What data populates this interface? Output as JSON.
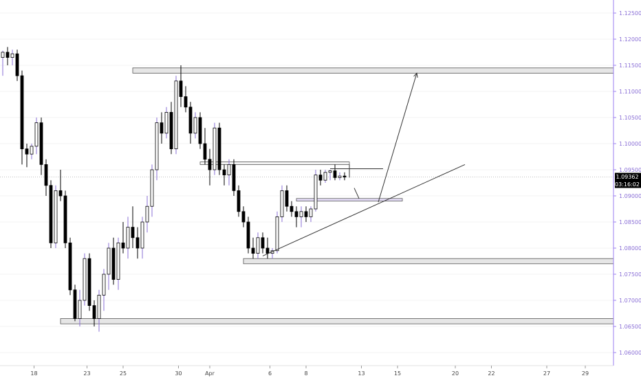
{
  "chart_data": {
    "type": "candlestick",
    "y_axis": {
      "range": [
        1.0575,
        1.1275
      ],
      "ticks": [
        "1.12500",
        "1.12000",
        "1.11500",
        "1.11000",
        "1.10500",
        "1.10000",
        "1.09500",
        "1.09000",
        "1.08500",
        "1.08000",
        "1.07500",
        "1.07000",
        "1.06500",
        "1.06000"
      ]
    },
    "x_axis": {
      "ticks": [
        {
          "label": "18",
          "bar": 6.5
        },
        {
          "label": "23",
          "bar": 17.5
        },
        {
          "label": "25",
          "bar": 25
        },
        {
          "label": "30",
          "bar": 36.5
        },
        {
          "label": "Apr",
          "bar": 43
        },
        {
          "label": "6",
          "bar": 55.5
        },
        {
          "label": "8",
          "bar": 63
        },
        {
          "label": "13",
          "bar": 74.5
        },
        {
          "label": "15",
          "bar": 82
        },
        {
          "label": "20",
          "bar": 94
        },
        {
          "label": "22",
          "bar": 101.5
        },
        {
          "label": "27",
          "bar": 113
        },
        {
          "label": "29",
          "bar": 121
        }
      ]
    },
    "current_price": "1.09362",
    "countdown": "03:16:02",
    "bullish_color": "#ffffff",
    "bearish_color": "#000000",
    "ohlc": [
      [
        1.1165,
        1.1178,
        1.113,
        1.1175
      ],
      [
        1.1175,
        1.1185,
        1.115,
        1.1165
      ],
      [
        1.1165,
        1.118,
        1.115,
        1.1172
      ],
      [
        1.1172,
        1.118,
        1.112,
        1.113
      ],
      [
        1.113,
        1.114,
        1.096,
        1.099
      ],
      [
        1.099,
        1.1,
        1.0955,
        1.098
      ],
      [
        1.098,
        1.1,
        1.097,
        1.0995
      ],
      [
        1.0995,
        1.105,
        1.098,
        1.104
      ],
      [
        1.104,
        1.105,
        1.094,
        1.096
      ],
      [
        1.096,
        1.097,
        1.09,
        1.092
      ],
      [
        1.092,
        1.093,
        1.08,
        1.081
      ],
      [
        1.081,
        1.092,
        1.08,
        1.091
      ],
      [
        1.091,
        1.095,
        1.089,
        1.09
      ],
      [
        1.09,
        1.091,
        1.08,
        1.081
      ],
      [
        1.081,
        1.082,
        1.071,
        1.072
      ],
      [
        1.072,
        1.073,
        1.066,
        1.0665
      ],
      [
        1.0665,
        1.072,
        1.065,
        1.07
      ],
      [
        1.07,
        1.079,
        1.069,
        1.078
      ],
      [
        1.078,
        1.079,
        1.068,
        1.069
      ],
      [
        1.069,
        1.07,
        1.065,
        1.0665
      ],
      [
        1.0665,
        1.072,
        1.064,
        1.071
      ],
      [
        1.071,
        1.076,
        1.068,
        1.075
      ],
      [
        1.075,
        1.081,
        1.072,
        1.08
      ],
      [
        1.08,
        1.082,
        1.073,
        1.074
      ],
      [
        1.074,
        1.082,
        1.072,
        1.081
      ],
      [
        1.081,
        1.085,
        1.079,
        1.08
      ],
      [
        1.08,
        1.086,
        1.078,
        1.084
      ],
      [
        1.084,
        1.088,
        1.08,
        1.082
      ],
      [
        1.082,
        1.084,
        1.078,
        1.08
      ],
      [
        1.08,
        1.086,
        1.078,
        1.085
      ],
      [
        1.085,
        1.09,
        1.083,
        1.088
      ],
      [
        1.088,
        1.096,
        1.086,
        1.095
      ],
      [
        1.095,
        1.105,
        1.093,
        1.104
      ],
      [
        1.104,
        1.106,
        1.1,
        1.102
      ],
      [
        1.102,
        1.107,
        1.101,
        1.106
      ],
      [
        1.106,
        1.108,
        1.098,
        1.099
      ],
      [
        1.099,
        1.113,
        1.098,
        1.112
      ],
      [
        1.112,
        1.115,
        1.107,
        1.109
      ],
      [
        1.109,
        1.111,
        1.106,
        1.107
      ],
      [
        1.107,
        1.108,
        1.1,
        1.102
      ],
      [
        1.102,
        1.106,
        1.101,
        1.105
      ],
      [
        1.105,
        1.106,
        1.099,
        1.1
      ],
      [
        1.1,
        1.103,
        1.096,
        1.097
      ],
      [
        1.097,
        1.099,
        1.092,
        1.095
      ],
      [
        1.095,
        1.104,
        1.094,
        1.103
      ],
      [
        1.103,
        1.104,
        1.094,
        1.095
      ],
      [
        1.095,
        1.096,
        1.092,
        1.094
      ],
      [
        1.094,
        1.097,
        1.092,
        1.096
      ],
      [
        1.096,
        1.097,
        1.09,
        1.091
      ],
      [
        1.091,
        1.092,
        1.086,
        1.087
      ],
      [
        1.087,
        1.088,
        1.084,
        1.085
      ],
      [
        1.085,
        1.086,
        1.079,
        1.08
      ],
      [
        1.08,
        1.082,
        1.078,
        1.079
      ],
      [
        1.079,
        1.083,
        1.078,
        1.082
      ],
      [
        1.082,
        1.083,
        1.079,
        1.08
      ],
      [
        1.08,
        1.082,
        1.078,
        1.079
      ],
      [
        1.079,
        1.08,
        1.078,
        1.0795
      ],
      [
        1.0795,
        1.087,
        1.079,
        1.086
      ],
      [
        1.086,
        1.092,
        1.085,
        1.091
      ],
      [
        1.091,
        1.092,
        1.087,
        1.088
      ],
      [
        1.088,
        1.089,
        1.086,
        1.087
      ],
      [
        1.087,
        1.088,
        1.084,
        1.086
      ],
      [
        1.086,
        1.088,
        1.084,
        1.087
      ],
      [
        1.087,
        1.088,
        1.085,
        1.086
      ],
      [
        1.086,
        1.088,
        1.085,
        1.0875
      ],
      [
        1.0875,
        1.095,
        1.087,
        1.094
      ],
      [
        1.094,
        1.095,
        1.092,
        1.093
      ],
      [
        1.093,
        1.095,
        1.0925,
        1.0945
      ],
      [
        1.0945,
        1.095,
        1.093,
        1.0948
      ],
      [
        1.0948,
        1.096,
        1.093,
        1.0935
      ],
      [
        1.0935,
        1.0945,
        1.093,
        1.0938
      ],
      [
        1.0938,
        1.0945,
        1.093,
        1.0936
      ]
    ],
    "zones": [
      {
        "from": 1.1135,
        "to": 1.1145,
        "start_bar": 27,
        "end_bar": 130,
        "fill": "#e6e6e6"
      },
      {
        "from": 1.096,
        "to": 1.0965,
        "start_bar": 41,
        "end_bar": 72,
        "fill": "#f2f2f2"
      },
      {
        "from": 1.089,
        "to": 1.0895,
        "start_bar": 61,
        "end_bar": 83,
        "fill": "#e6def9"
      },
      {
        "from": 1.077,
        "to": 1.078,
        "start_bar": 50,
        "end_bar": 130,
        "fill": "#e6e6e6"
      },
      {
        "from": 1.0655,
        "to": 1.0665,
        "start_bar": 12,
        "end_bar": 130,
        "fill": "#e6e6e6"
      }
    ],
    "lines": [
      {
        "x1": 54,
        "y1": 1.0785,
        "x2": 96,
        "y2": 1.096,
        "kind": "trendline"
      },
      {
        "x1": 78,
        "y1": 1.0888,
        "x2": 86,
        "y2": 1.1135,
        "kind": "arrow"
      },
      {
        "x1": 68,
        "y1": 1.0952,
        "x2": 79,
        "y2": 1.0952,
        "kind": "segment"
      },
      {
        "x1": 73,
        "y1": 1.0915,
        "x2": 74,
        "y2": 1.0895,
        "kind": "segment"
      },
      {
        "x1": 72,
        "y1": 1.096,
        "x2": 72,
        "y2": 1.0935,
        "kind": "segment"
      }
    ]
  }
}
